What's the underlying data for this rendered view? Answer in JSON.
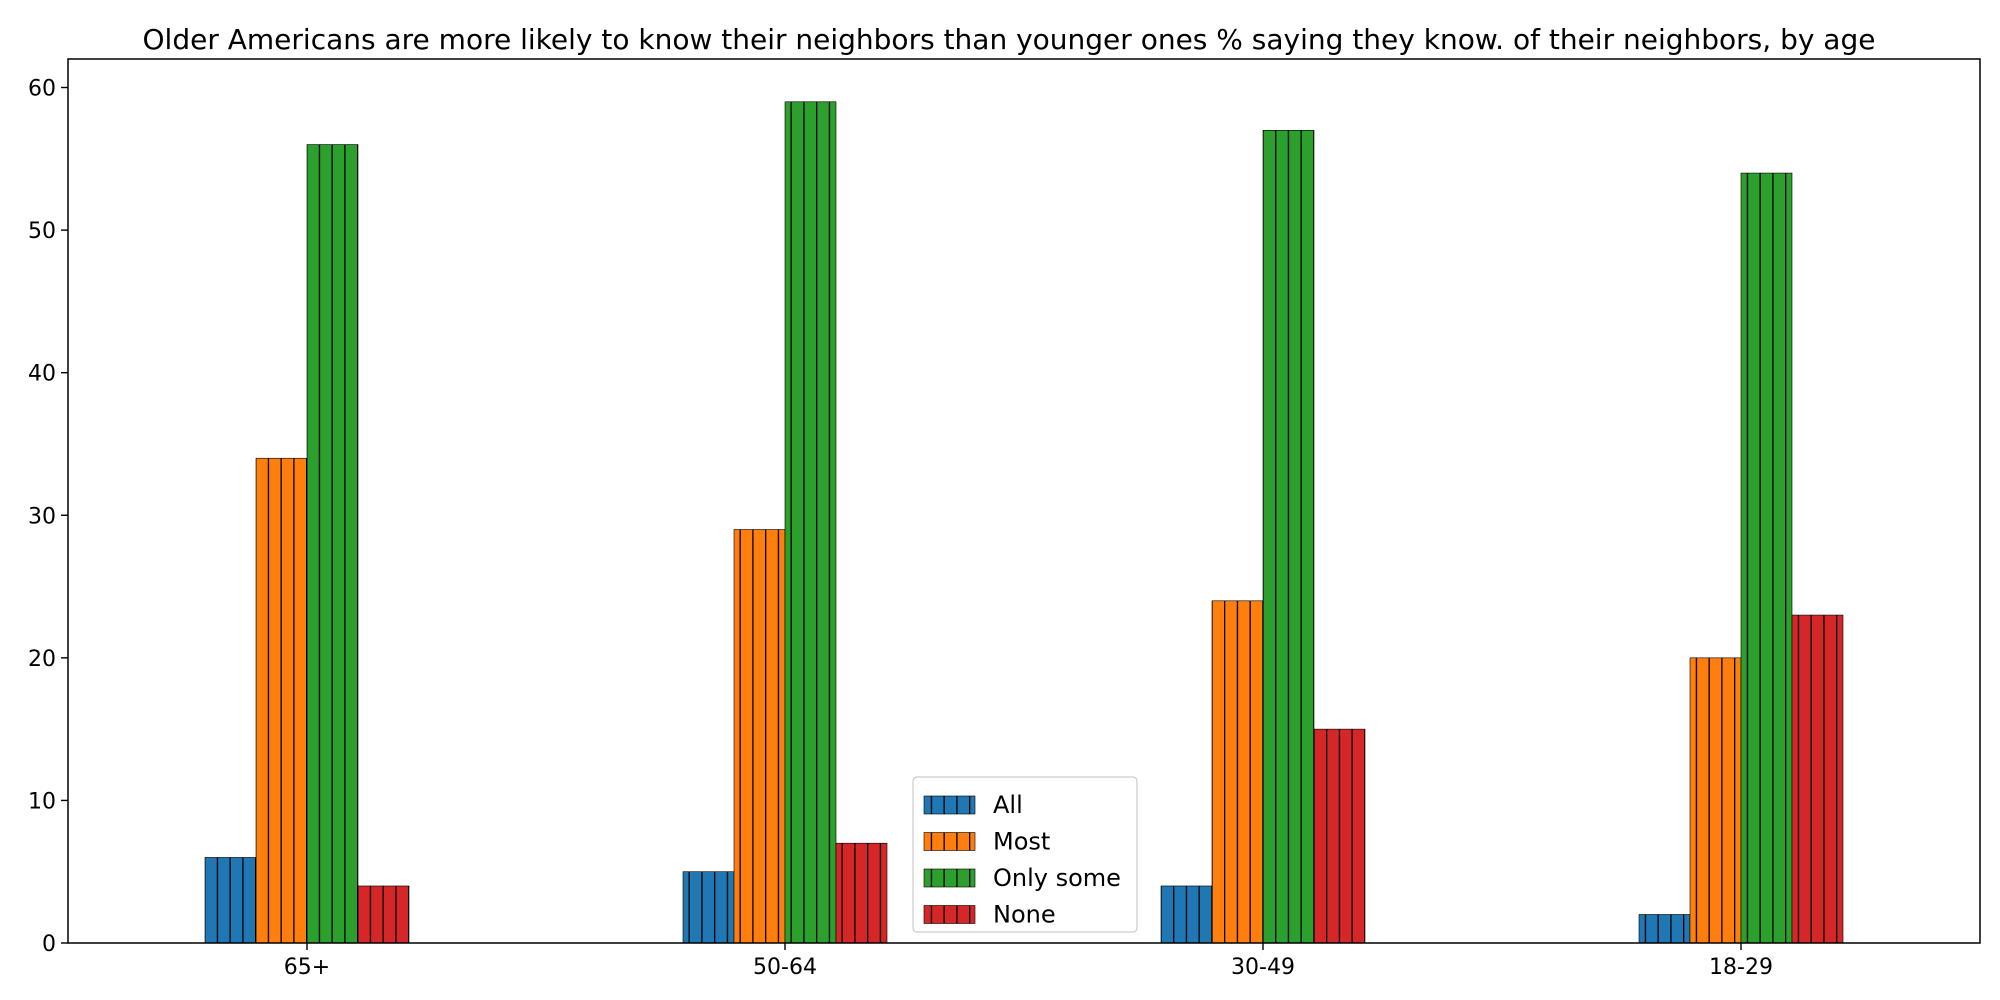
{
  "chart_data": {
    "type": "bar",
    "title": "Older Americans are more likely to know their neighbors than younger ones % saying they know. of their neighbors, by age",
    "categories": [
      "65+",
      "50-64",
      "30-49",
      "18-29"
    ],
    "series": [
      {
        "name": "All",
        "values": [
          6,
          5,
          4,
          2
        ],
        "color": "#1f77b4"
      },
      {
        "name": "Most",
        "values": [
          34,
          29,
          24,
          20
        ],
        "color": "#ff7f0e"
      },
      {
        "name": "Only some",
        "values": [
          56,
          59,
          57,
          54
        ],
        "color": "#2ca02c"
      },
      {
        "name": "None",
        "values": [
          4,
          7,
          15,
          23
        ],
        "color": "#d62728"
      }
    ],
    "xlabel": "",
    "ylabel": "",
    "ylim": [
      0,
      62
    ],
    "yticks": [
      0,
      10,
      20,
      30,
      40,
      50,
      60
    ],
    "bar_hatch": "vertical",
    "grid": false,
    "legend_position": "lower-center"
  }
}
